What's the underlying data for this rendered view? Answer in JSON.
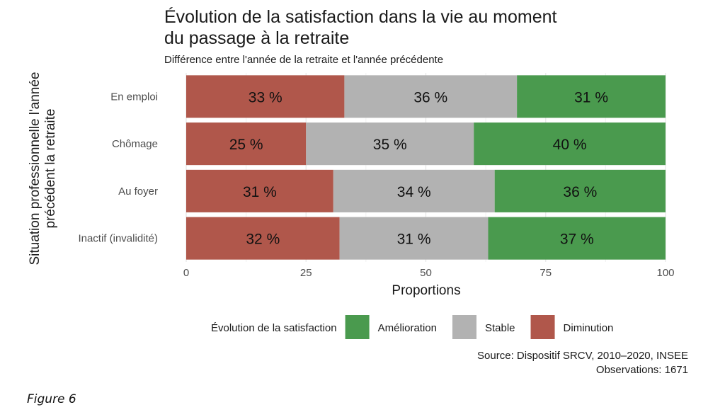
{
  "chart_data": {
    "type": "bar",
    "orientation": "horizontal",
    "stacked": true,
    "title_lines": [
      "Évolution de la satisfaction dans la vie au moment",
      "du passage à la retraite"
    ],
    "subtitle": "Différence entre l'année de la retraite et l'année précédente",
    "xlabel": "Proportions",
    "ylabel_lines": [
      "Situation professionnelle l'année",
      "précédent la retraite"
    ],
    "xlim": [
      0,
      100
    ],
    "xticks": [
      0,
      25,
      50,
      75,
      100
    ],
    "grid": true,
    "categories": [
      "En emploi",
      "Chômage",
      "Au foyer",
      "Inactif (invalidité)"
    ],
    "series": [
      {
        "name": "Diminution",
        "color": "#b0574b",
        "values": [
          33,
          25,
          31,
          32
        ],
        "labels": [
          "33 %",
          "25 %",
          "31 %",
          "32 %"
        ]
      },
      {
        "name": "Stable",
        "color": "#b2b2b2",
        "values": [
          36,
          35,
          34,
          31
        ],
        "labels": [
          "36 %",
          "35 %",
          "34 %",
          "31 %"
        ]
      },
      {
        "name": "Amélioration",
        "color": "#4a9a4e",
        "values": [
          31,
          40,
          36,
          37
        ],
        "labels": [
          "31 %",
          "40 %",
          "36 %",
          "37 %"
        ]
      }
    ],
    "legend": {
      "title": "Évolution de la satisfaction",
      "position": "bottom",
      "order": [
        "Amélioration",
        "Stable",
        "Diminution"
      ]
    },
    "caption_lines": [
      "Source: Dispositif SRCV, 2010–2020, INSEE",
      "Observations: 1671"
    ]
  },
  "figure_label": "Figure 6"
}
